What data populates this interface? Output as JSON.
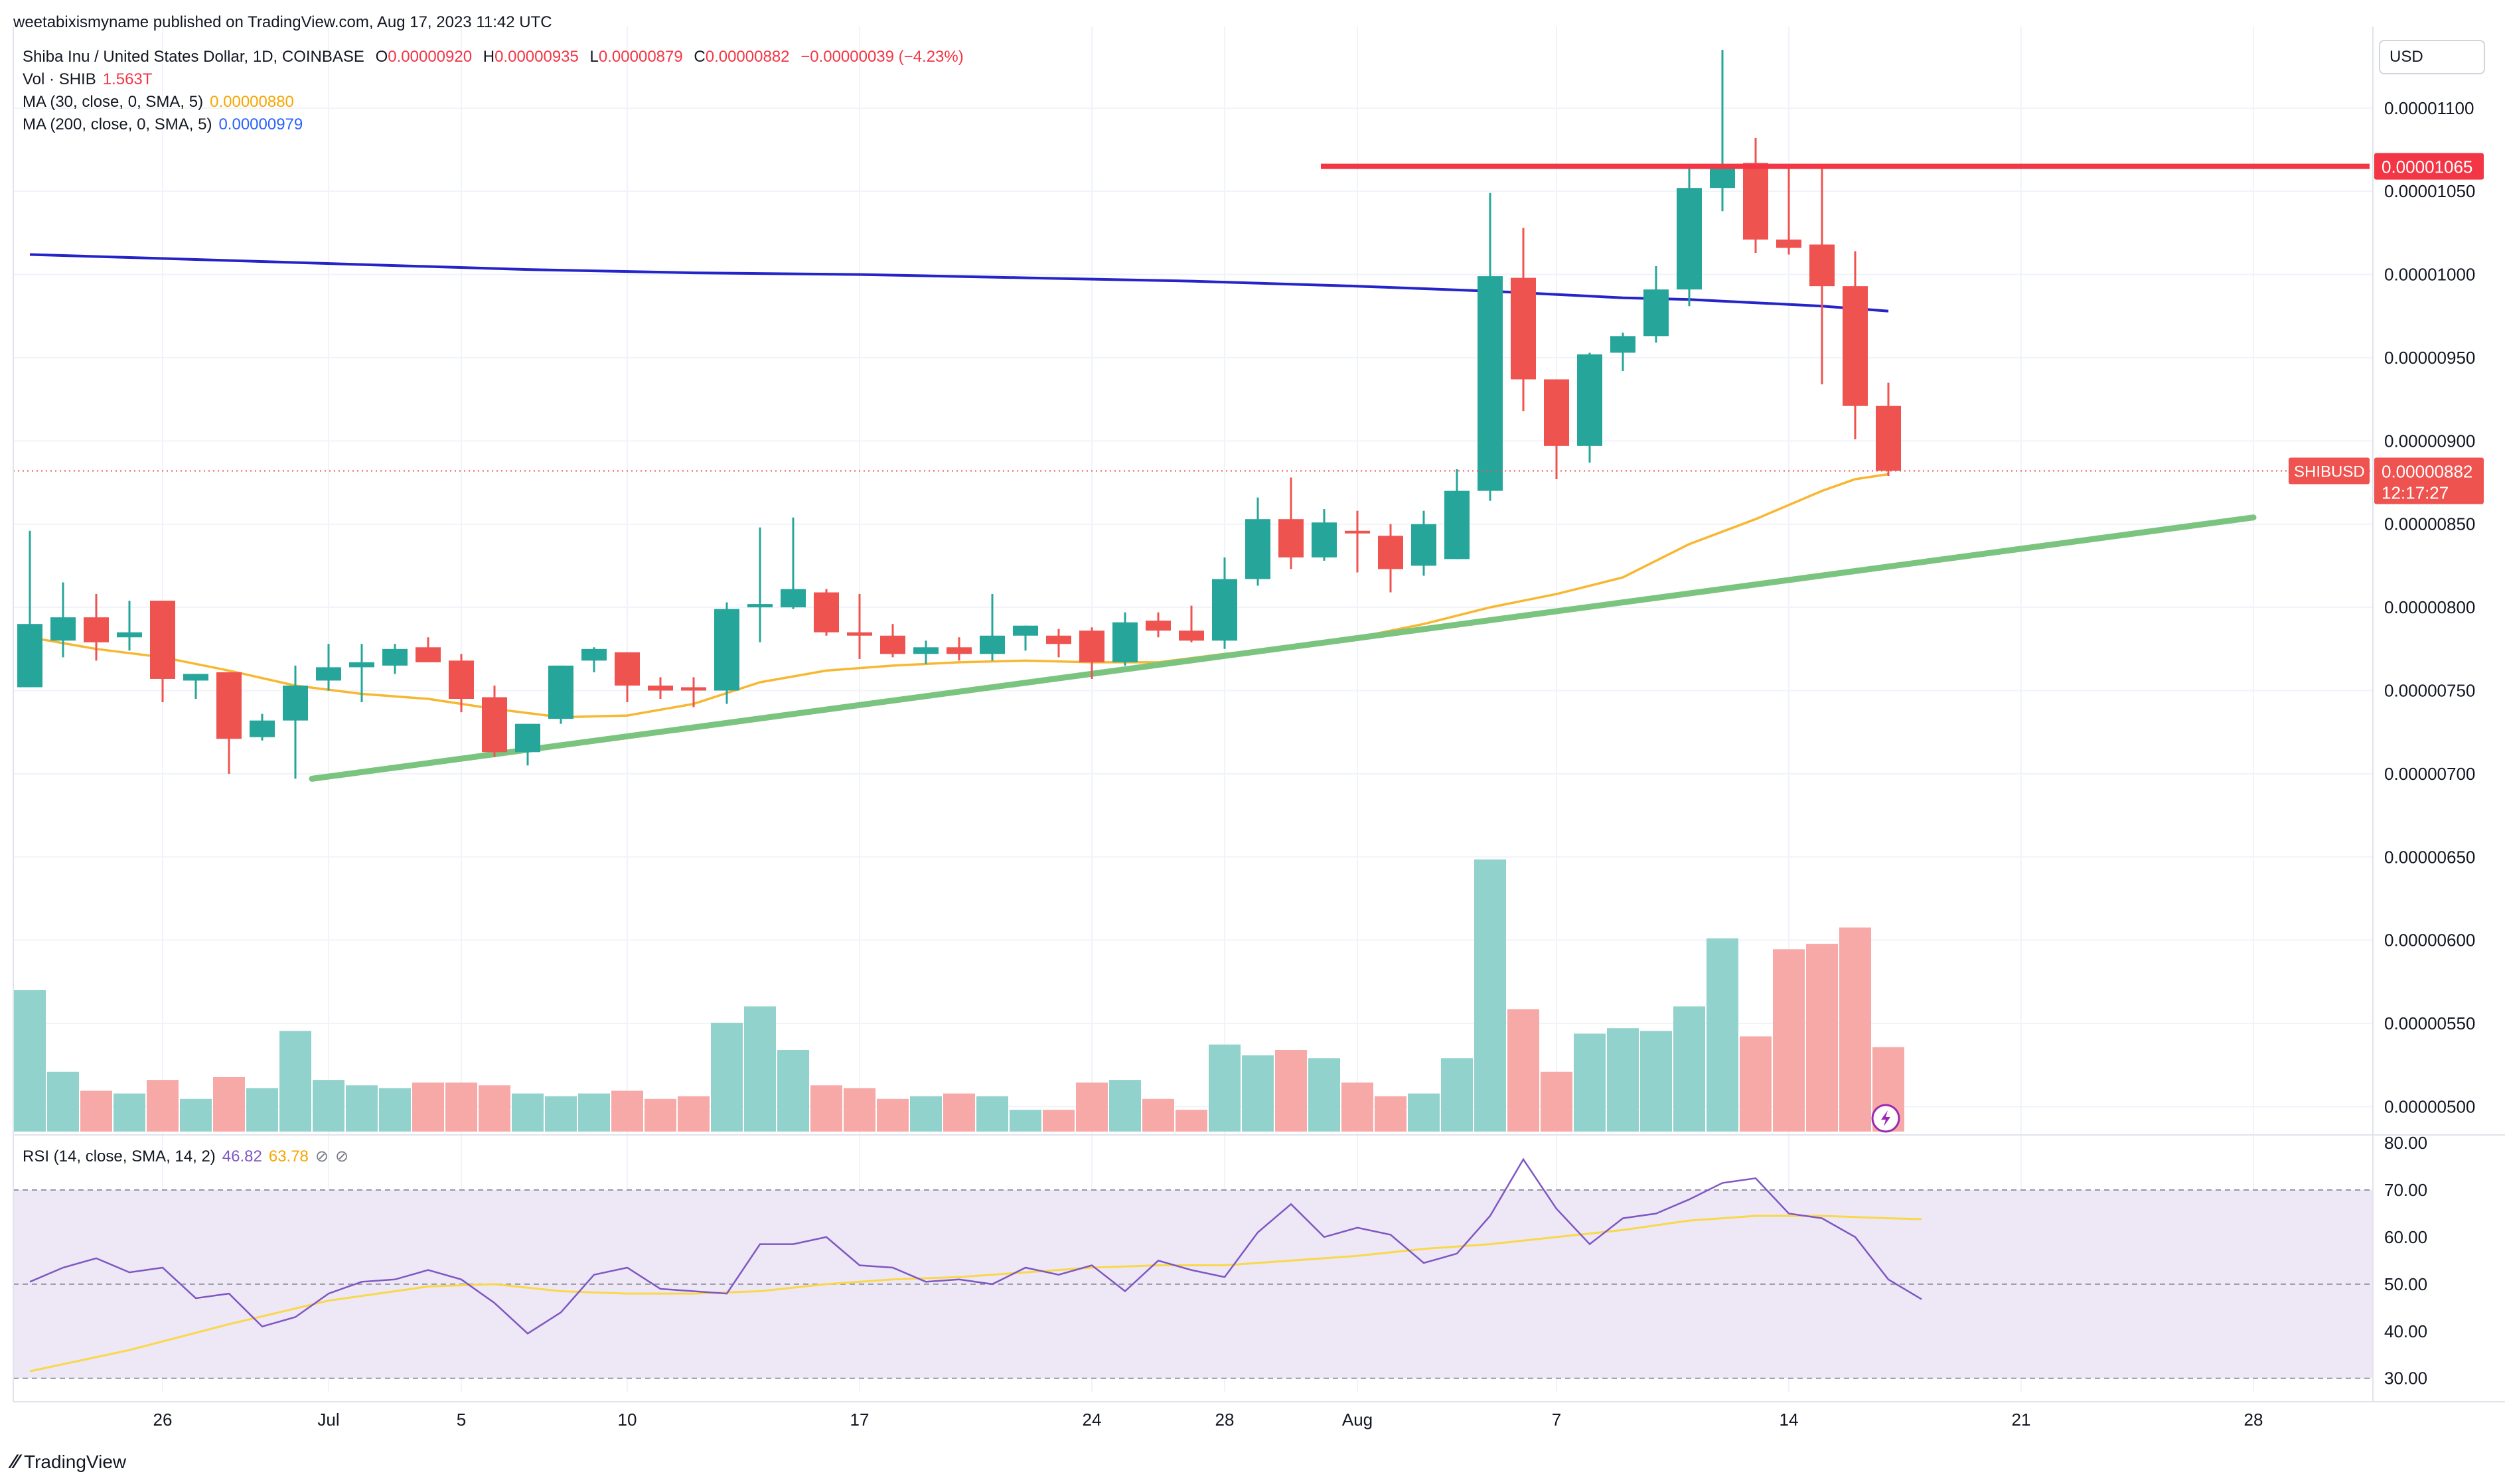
{
  "header": {
    "published_by": "weetabixismyname published on TradingView.com, Aug 17, 2023 11:42 UTC"
  },
  "legend": {
    "symbol": "Shiba Inu / United States Dollar, 1D, COINBASE",
    "o_label": "O",
    "o": "0.00000920",
    "h_label": "H",
    "h": "0.00000935",
    "l_label": "L",
    "l": "0.00000879",
    "c_label": "C",
    "c": "0.00000882",
    "change": "−0.00000039 (−4.23%)",
    "vol_label": "Vol · SHIB",
    "vol": "1.563T",
    "ma30_label": "MA (30, close, 0, SMA, 5)",
    "ma30": "0.00000880",
    "ma200_label": "MA (200, close, 0, SMA, 5)",
    "ma200": "0.00000979",
    "rsi_label": "RSI (14, close, SMA, 14, 2)",
    "rsi": "46.82",
    "rsi_ma": "63.78"
  },
  "currency_button": "USD",
  "price_tags": {
    "resistance": "0.00001065",
    "symbol": "SHIBUSD",
    "last": "0.00000882",
    "countdown": "12:17:27"
  },
  "branding": "TradingView",
  "colors": {
    "up": "#26a69a",
    "down": "#ef5350",
    "vol_up": "#92d2cc",
    "vol_down": "#f7a9a7",
    "ma30": "#f7b731",
    "ma200": "#2424c8",
    "trend": "#7bc47f",
    "resistance": "#f23645",
    "rsi": "#7e57c2",
    "rsi_ma": "#f9d84a",
    "rsi_band": "#ede7f6"
  },
  "chart_data": {
    "type": "candlestick",
    "price_axis": {
      "range": [
        4.85e-06,
        1.145e-05
      ],
      "ticks": [
        "0.00001100",
        "0.00001050",
        "0.00001000",
        "0.00000950",
        "0.00000900",
        "0.00000850",
        "0.00000800",
        "0.00000750",
        "0.00000700",
        "0.00000650",
        "0.00000600",
        "0.00000550",
        "0.00000500"
      ]
    },
    "rsi_axis": {
      "range": [
        27,
        81
      ],
      "ticks": [
        "80.00",
        "70.00",
        "60.00",
        "50.00",
        "40.00",
        "30.00"
      ],
      "band": [
        30,
        70
      ]
    },
    "x_axis": {
      "labels": [
        {
          "text": "26",
          "day": 4
        },
        {
          "text": "Jul",
          "day": 9
        },
        {
          "text": "5",
          "day": 13
        },
        {
          "text": "10",
          "day": 18
        },
        {
          "text": "17",
          "day": 25
        },
        {
          "text": "24",
          "day": 32
        },
        {
          "text": "28",
          "day": 36
        },
        {
          "text": "Aug",
          "day": 40
        },
        {
          "text": "7",
          "day": 46
        },
        {
          "text": "14",
          "day": 53
        },
        {
          "text": "21",
          "day": 60
        },
        {
          "text": "28",
          "day": 67
        }
      ]
    },
    "candles": [
      {
        "o": 7.52,
        "h": 8.46,
        "l": 7.52,
        "c": 7.9,
        "v": 0.52
      },
      {
        "o": 7.8,
        "h": 8.15,
        "l": 7.7,
        "c": 7.94,
        "v": 0.22
      },
      {
        "o": 7.94,
        "h": 8.08,
        "l": 7.68,
        "c": 7.79,
        "v": 0.15
      },
      {
        "o": 7.82,
        "h": 8.04,
        "l": 7.74,
        "c": 7.85,
        "v": 0.14
      },
      {
        "o": 8.04,
        "h": 8.04,
        "l": 7.43,
        "c": 7.57,
        "v": 0.19
      },
      {
        "o": 7.56,
        "h": 7.6,
        "l": 7.45,
        "c": 7.6,
        "v": 0.12
      },
      {
        "o": 7.61,
        "h": 7.61,
        "l": 7.0,
        "c": 7.21,
        "v": 0.2
      },
      {
        "o": 7.22,
        "h": 7.36,
        "l": 7.2,
        "c": 7.32,
        "v": 0.16
      },
      {
        "o": 7.32,
        "h": 7.65,
        "l": 6.97,
        "c": 7.53,
        "v": 0.37
      },
      {
        "o": 7.56,
        "h": 7.78,
        "l": 7.5,
        "c": 7.64,
        "v": 0.19
      },
      {
        "o": 7.64,
        "h": 7.78,
        "l": 7.43,
        "c": 7.67,
        "v": 0.17
      },
      {
        "o": 7.65,
        "h": 7.78,
        "l": 7.6,
        "c": 7.75,
        "v": 0.16
      },
      {
        "o": 7.76,
        "h": 7.82,
        "l": 7.68,
        "c": 7.67,
        "v": 0.18
      },
      {
        "o": 7.68,
        "h": 7.72,
        "l": 7.37,
        "c": 7.45,
        "v": 0.18
      },
      {
        "o": 7.46,
        "h": 7.53,
        "l": 7.1,
        "c": 7.13,
        "v": 0.17
      },
      {
        "o": 7.13,
        "h": 7.3,
        "l": 7.05,
        "c": 7.3,
        "v": 0.14
      },
      {
        "o": 7.33,
        "h": 7.65,
        "l": 7.3,
        "c": 7.65,
        "v": 0.13
      },
      {
        "o": 7.68,
        "h": 7.76,
        "l": 7.61,
        "c": 7.75,
        "v": 0.14
      },
      {
        "o": 7.73,
        "h": 7.73,
        "l": 7.43,
        "c": 7.53,
        "v": 0.15
      },
      {
        "o": 7.53,
        "h": 7.58,
        "l": 7.45,
        "c": 7.5,
        "v": 0.12
      },
      {
        "o": 7.52,
        "h": 7.58,
        "l": 7.4,
        "c": 7.5,
        "v": 0.13
      },
      {
        "o": 7.5,
        "h": 8.03,
        "l": 7.42,
        "c": 7.99,
        "v": 0.4
      },
      {
        "o": 8.0,
        "h": 8.48,
        "l": 7.79,
        "c": 8.02,
        "v": 0.46
      },
      {
        "o": 8.0,
        "h": 8.54,
        "l": 7.99,
        "c": 8.11,
        "v": 0.3
      },
      {
        "o": 8.09,
        "h": 8.11,
        "l": 7.83,
        "c": 7.85,
        "v": 0.17
      },
      {
        "o": 7.85,
        "h": 8.08,
        "l": 7.69,
        "c": 7.83,
        "v": 0.16
      },
      {
        "o": 7.83,
        "h": 7.9,
        "l": 7.7,
        "c": 7.72,
        "v": 0.12
      },
      {
        "o": 7.72,
        "h": 7.8,
        "l": 7.66,
        "c": 7.76,
        "v": 0.13
      },
      {
        "o": 7.76,
        "h": 7.82,
        "l": 7.68,
        "c": 7.72,
        "v": 0.14
      },
      {
        "o": 7.72,
        "h": 8.08,
        "l": 7.68,
        "c": 7.83,
        "v": 0.13
      },
      {
        "o": 7.83,
        "h": 7.89,
        "l": 7.74,
        "c": 7.89,
        "v": 0.08
      },
      {
        "o": 7.83,
        "h": 7.87,
        "l": 7.7,
        "c": 7.78,
        "v": 0.08
      },
      {
        "o": 7.86,
        "h": 7.88,
        "l": 7.57,
        "c": 7.67,
        "v": 0.18
      },
      {
        "o": 7.67,
        "h": 7.97,
        "l": 7.65,
        "c": 7.91,
        "v": 0.19
      },
      {
        "o": 7.92,
        "h": 7.97,
        "l": 7.82,
        "c": 7.86,
        "v": 0.12
      },
      {
        "o": 7.86,
        "h": 8.01,
        "l": 7.79,
        "c": 7.8,
        "v": 0.08
      },
      {
        "o": 7.8,
        "h": 8.3,
        "l": 7.75,
        "c": 8.17,
        "v": 0.32
      },
      {
        "o": 8.17,
        "h": 8.66,
        "l": 8.13,
        "c": 8.53,
        "v": 0.28
      },
      {
        "o": 8.53,
        "h": 8.78,
        "l": 8.23,
        "c": 8.3,
        "v": 0.3
      },
      {
        "o": 8.3,
        "h": 8.59,
        "l": 8.28,
        "c": 8.51,
        "v": 0.27
      },
      {
        "o": 8.46,
        "h": 8.58,
        "l": 8.21,
        "c": 8.45,
        "v": 0.18
      },
      {
        "o": 8.43,
        "h": 8.5,
        "l": 8.09,
        "c": 8.23,
        "v": 0.13
      },
      {
        "o": 8.25,
        "h": 8.58,
        "l": 8.19,
        "c": 8.5,
        "v": 0.14
      },
      {
        "o": 8.29,
        "h": 8.83,
        "l": 8.29,
        "c": 8.7,
        "v": 0.27
      },
      {
        "o": 8.7,
        "h": 10.49,
        "l": 8.64,
        "c": 9.99,
        "v": 1.0
      },
      {
        "o": 9.98,
        "h": 10.28,
        "l": 9.18,
        "c": 9.37,
        "v": 0.45
      },
      {
        "o": 9.37,
        "h": 9.37,
        "l": 8.77,
        "c": 8.97,
        "v": 0.22
      },
      {
        "o": 8.97,
        "h": 9.53,
        "l": 8.87,
        "c": 9.52,
        "v": 0.36
      },
      {
        "o": 9.53,
        "h": 9.65,
        "l": 9.42,
        "c": 9.63,
        "v": 0.38
      },
      {
        "o": 9.63,
        "h": 10.05,
        "l": 9.59,
        "c": 9.91,
        "v": 0.37
      },
      {
        "o": 9.91,
        "h": 10.65,
        "l": 9.81,
        "c": 10.52,
        "v": 0.46
      },
      {
        "o": 10.52,
        "h": 11.35,
        "l": 10.38,
        "c": 10.65,
        "v": 0.71
      },
      {
        "o": 10.67,
        "h": 10.82,
        "l": 10.13,
        "c": 10.21,
        "v": 0.35
      },
      {
        "o": 10.21,
        "h": 10.65,
        "l": 10.12,
        "c": 10.16,
        "v": 0.67
      },
      {
        "o": 10.18,
        "h": 10.65,
        "l": 9.34,
        "c": 9.93,
        "v": 0.69
      },
      {
        "o": 9.93,
        "h": 10.14,
        "l": 9.01,
        "c": 9.21,
        "v": 0.75
      },
      {
        "o": 9.21,
        "h": 9.35,
        "l": 8.79,
        "c": 8.82,
        "v": 0.31
      }
    ],
    "ma200": [
      [
        0,
        10.12
      ],
      [
        5,
        10.09
      ],
      [
        10,
        10.06
      ],
      [
        15,
        10.03
      ],
      [
        20,
        10.01
      ],
      [
        25,
        10.0
      ],
      [
        30,
        9.98
      ],
      [
        35,
        9.96
      ],
      [
        40,
        9.93
      ],
      [
        44,
        9.9
      ],
      [
        48,
        9.86
      ],
      [
        50,
        9.85
      ],
      [
        52,
        9.83
      ],
      [
        54,
        9.81
      ],
      [
        56,
        9.78
      ]
    ],
    "ma30": [
      [
        0,
        7.82
      ],
      [
        2,
        7.75
      ],
      [
        4,
        7.7
      ],
      [
        6,
        7.62
      ],
      [
        8,
        7.53
      ],
      [
        10,
        7.48
      ],
      [
        12,
        7.45
      ],
      [
        14,
        7.39
      ],
      [
        16,
        7.34
      ],
      [
        18,
        7.35
      ],
      [
        20,
        7.42
      ],
      [
        22,
        7.55
      ],
      [
        24,
        7.62
      ],
      [
        26,
        7.65
      ],
      [
        28,
        7.67
      ],
      [
        30,
        7.68
      ],
      [
        32,
        7.67
      ],
      [
        34,
        7.67
      ],
      [
        36,
        7.72
      ],
      [
        38,
        7.76
      ],
      [
        40,
        7.82
      ],
      [
        42,
        7.9
      ],
      [
        44,
        8.0
      ],
      [
        46,
        8.08
      ],
      [
        48,
        8.18
      ],
      [
        50,
        8.38
      ],
      [
        52,
        8.53
      ],
      [
        54,
        8.7
      ],
      [
        55,
        8.77
      ],
      [
        56,
        8.8
      ]
    ],
    "rsi": [
      [
        0,
        50.5
      ],
      [
        1,
        53.5
      ],
      [
        2,
        55.5
      ],
      [
        3,
        52.5
      ],
      [
        4,
        53.5
      ],
      [
        5,
        47
      ],
      [
        6,
        48
      ],
      [
        7,
        41
      ],
      [
        8,
        43
      ],
      [
        9,
        48
      ],
      [
        10,
        50.5
      ],
      [
        11,
        51
      ],
      [
        12,
        53
      ],
      [
        13,
        51
      ],
      [
        14,
        46
      ],
      [
        15,
        39.5
      ],
      [
        16,
        44
      ],
      [
        17,
        52
      ],
      [
        18,
        53.5
      ],
      [
        19,
        49
      ],
      [
        20,
        48.5
      ],
      [
        21,
        48
      ],
      [
        22,
        58.5
      ],
      [
        23,
        58.5
      ],
      [
        24,
        60
      ],
      [
        25,
        54
      ],
      [
        26,
        53.5
      ],
      [
        27,
        50.5
      ],
      [
        28,
        51
      ],
      [
        29,
        50
      ],
      [
        30,
        53.5
      ],
      [
        31,
        52
      ],
      [
        32,
        54
      ],
      [
        33,
        48.5
      ],
      [
        34,
        55
      ],
      [
        35,
        53
      ],
      [
        36,
        51.5
      ],
      [
        37,
        61
      ],
      [
        38,
        67
      ],
      [
        39,
        60
      ],
      [
        40,
        62
      ],
      [
        41,
        60.5
      ],
      [
        42,
        54.5
      ],
      [
        43,
        56.5
      ],
      [
        44,
        64.5
      ],
      [
        45,
        76.5
      ],
      [
        46,
        66
      ],
      [
        47,
        58.5
      ],
      [
        48,
        64
      ],
      [
        49,
        65
      ],
      [
        50,
        68
      ],
      [
        51,
        71.5
      ],
      [
        52,
        72.5
      ],
      [
        53,
        65
      ],
      [
        54,
        64
      ],
      [
        55,
        60
      ],
      [
        56,
        51
      ],
      [
        57,
        46.8
      ]
    ],
    "rsi_ma": [
      [
        0,
        31.5
      ],
      [
        3,
        36
      ],
      [
        6,
        41.5
      ],
      [
        9,
        46.5
      ],
      [
        12,
        49.5
      ],
      [
        14,
        50
      ],
      [
        16,
        48.5
      ],
      [
        18,
        48
      ],
      [
        20,
        48
      ],
      [
        22,
        48.5
      ],
      [
        24,
        50
      ],
      [
        26,
        51
      ],
      [
        28,
        51.5
      ],
      [
        30,
        52.5
      ],
      [
        32,
        53.5
      ],
      [
        34,
        54
      ],
      [
        36,
        54
      ],
      [
        38,
        55
      ],
      [
        40,
        56
      ],
      [
        42,
        57.5
      ],
      [
        44,
        58.5
      ],
      [
        46,
        60
      ],
      [
        48,
        61.5
      ],
      [
        50,
        63.5
      ],
      [
        52,
        64.5
      ],
      [
        54,
        64.5
      ],
      [
        56,
        64
      ],
      [
        57,
        63.8
      ]
    ],
    "resistance": {
      "price": 10.65,
      "from_day": 38.9,
      "to_day": 70.5
    },
    "trendline": {
      "from": [
        8.5,
        6.97
      ],
      "to": [
        67.0,
        8.54
      ]
    }
  }
}
